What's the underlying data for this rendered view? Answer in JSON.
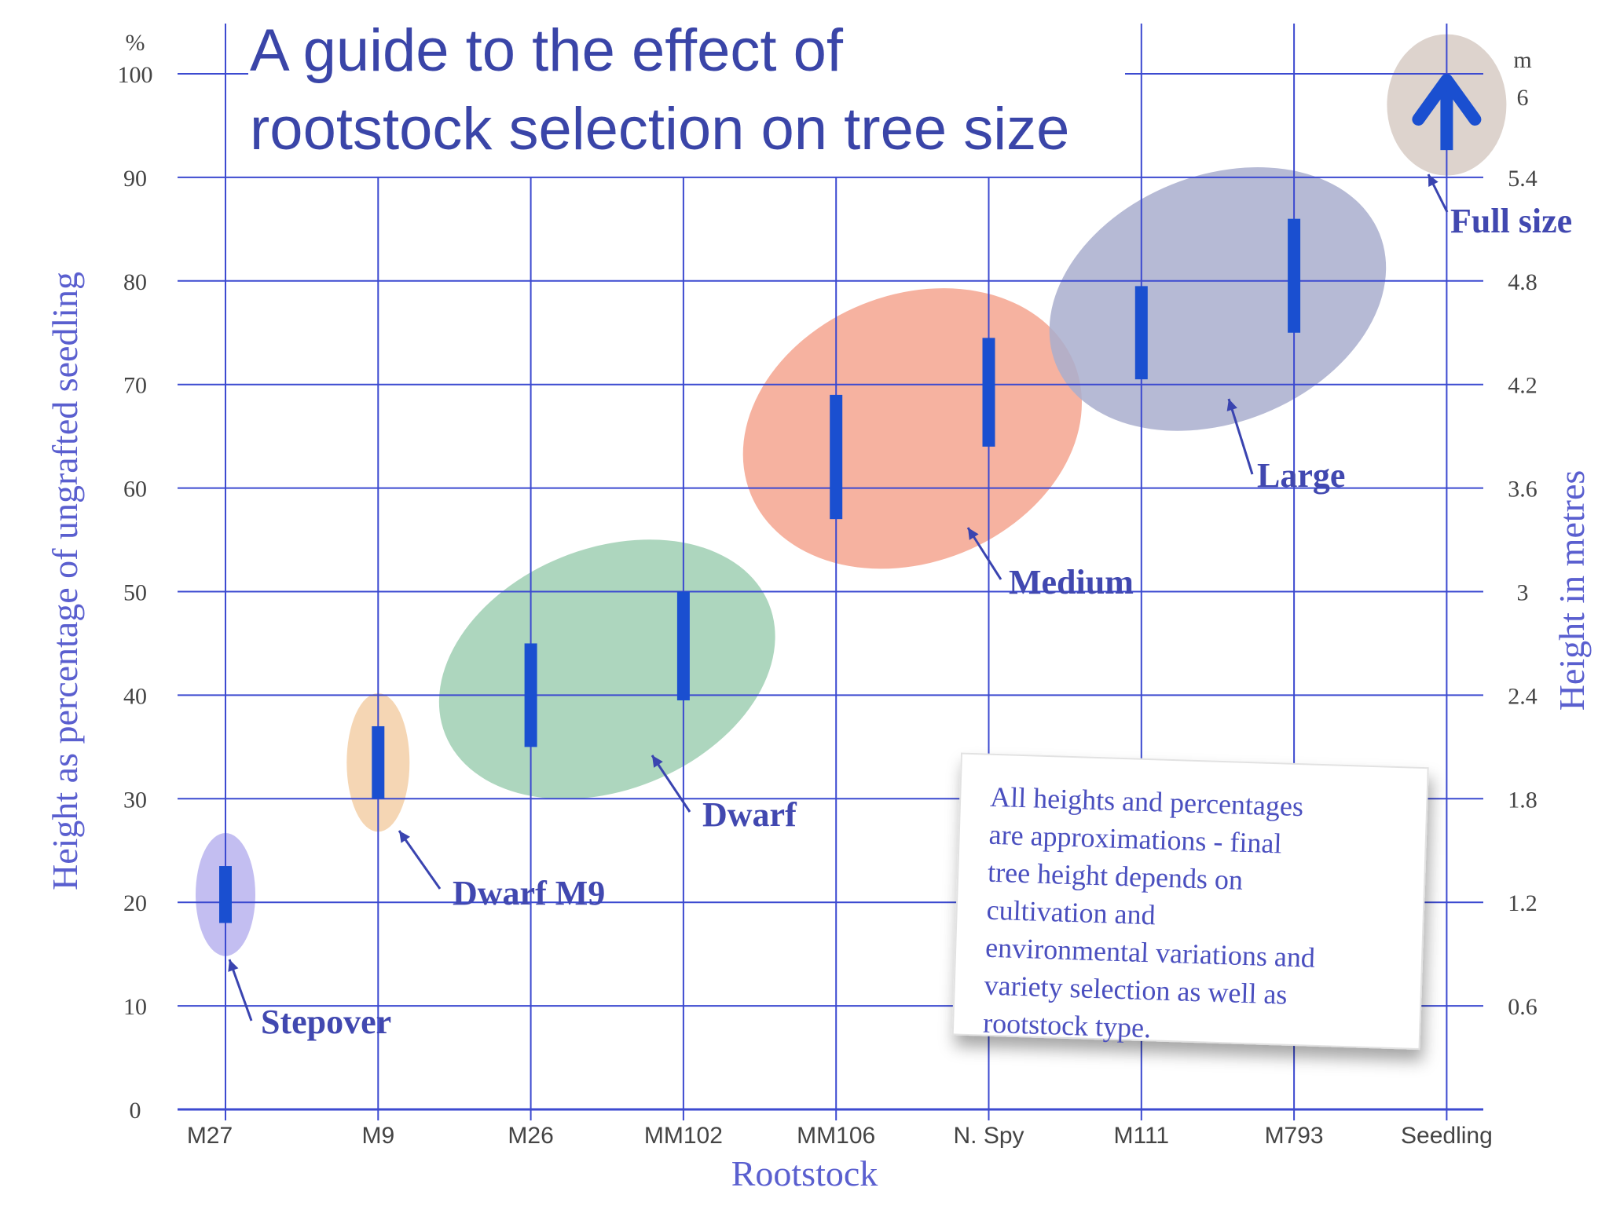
{
  "chart_data": {
    "type": "bar",
    "title_lines": [
      "A guide to the effect of",
      "rootstock selection on tree size"
    ],
    "xlabel": "Rootstock",
    "ylabel": "Height as percentage of ungrafted seedling",
    "y2label": "Height in metres",
    "y_unit_label": "%",
    "y2_unit_label": "m",
    "ylim": [
      0,
      100
    ],
    "yticks": [
      "0",
      "10",
      "20",
      "30",
      "40",
      "50",
      "60",
      "70",
      "80",
      "90",
      "100"
    ],
    "y2ticks": [
      {
        "value": 10,
        "label": "0.6"
      },
      {
        "value": 20,
        "label": "1.2"
      },
      {
        "value": 30,
        "label": "1.8"
      },
      {
        "value": 40,
        "label": "2.4"
      },
      {
        "value": 50,
        "label": "3"
      },
      {
        "value": 60,
        "label": "3.6"
      },
      {
        "value": 70,
        "label": "4.2"
      },
      {
        "value": 80,
        "label": "4.8"
      },
      {
        "value": 90,
        "label": "5.4"
      },
      {
        "value": 100,
        "label": "6"
      }
    ],
    "categories": [
      "M27",
      "M9",
      "M26",
      "MM102",
      "MM106",
      "N. Spy",
      "M111",
      "M793",
      "Seedling"
    ],
    "ranges": [
      {
        "category": "M27",
        "low": 18,
        "high": 23.5
      },
      {
        "category": "M9",
        "low": 30,
        "high": 37
      },
      {
        "category": "M26",
        "low": 35,
        "high": 45
      },
      {
        "category": "MM102",
        "low": 39.5,
        "high": 50
      },
      {
        "category": "MM106",
        "low": 57,
        "high": 69
      },
      {
        "category": "N. Spy",
        "low": 64,
        "high": 74.5
      },
      {
        "category": "M111",
        "low": 70.5,
        "high": 79.5
      },
      {
        "category": "M793",
        "low": 75,
        "high": 86
      },
      {
        "category": "Seedling",
        "low": 94,
        "high": 100,
        "arrow": true
      }
    ],
    "groups": [
      {
        "label": "Stepover",
        "categories": [
          "M27"
        ],
        "color": "#b9b3ee"
      },
      {
        "label": "Dwarf M9",
        "categories": [
          "M9"
        ],
        "color": "#f3cfa7"
      },
      {
        "label": "Dwarf",
        "categories": [
          "M26",
          "MM102"
        ],
        "color": "#9fcfb3"
      },
      {
        "label": "Medium",
        "categories": [
          "MM106",
          "N. Spy"
        ],
        "color": "#f4a58f"
      },
      {
        "label": "Large",
        "categories": [
          "M111",
          "M793"
        ],
        "color": "#a9aece"
      },
      {
        "label": "Full size",
        "categories": [
          "Seedling"
        ],
        "color": "#d7cbc4"
      }
    ],
    "note": "All heights and percentages are approximations - final tree height depends on cultivation and environmental variations and variety selection as well as rootstock type.",
    "bar_color": "#1a4fd0",
    "grid_color": "#3c4ad0"
  }
}
